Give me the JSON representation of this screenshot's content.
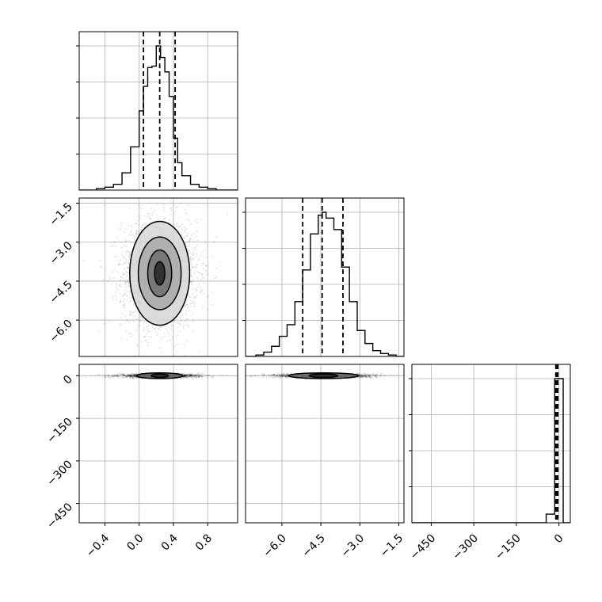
{
  "chart_data": {
    "type": "corner",
    "parameters": [
      {
        "index": 0,
        "range": [
          -0.7,
          1.15
        ],
        "ticks": [
          -0.4,
          0.0,
          0.4,
          0.8
        ],
        "tick_labels": [
          "−0.4",
          "0.0",
          "0.4",
          "0.8"
        ],
        "quantiles": [
          0.05,
          0.24,
          0.42
        ],
        "hist": {
          "edges": [
            -0.7,
            -0.6,
            -0.5,
            -0.4,
            -0.3,
            -0.2,
            -0.1,
            0.0,
            0.05,
            0.1,
            0.15,
            0.2,
            0.25,
            0.3,
            0.35,
            0.4,
            0.45,
            0.5,
            0.6,
            0.7,
            0.8,
            0.9,
            1.0,
            1.15
          ],
          "counts": [
            0,
            0,
            1,
            2,
            4,
            12,
            30,
            55,
            72,
            85,
            86,
            100,
            92,
            82,
            65,
            36,
            19,
            10,
            4,
            2,
            1,
            0,
            0
          ]
        }
      },
      {
        "index": 1,
        "range": [
          -7.4,
          -1.3
        ],
        "ticks": [
          -6.0,
          -4.5,
          -3.0,
          -1.5
        ],
        "tick_labels": [
          "−6.0",
          "−4.5",
          "−3.0",
          "−1.5"
        ],
        "quantiles": [
          -5.2,
          -4.45,
          -3.65
        ],
        "hist": {
          "edges": [
            -7.4,
            -7.0,
            -6.7,
            -6.4,
            -6.1,
            -5.8,
            -5.5,
            -5.2,
            -4.9,
            -4.6,
            -4.45,
            -4.3,
            -4.0,
            -3.7,
            -3.4,
            -3.1,
            -2.8,
            -2.5,
            -2.2,
            -1.9,
            -1.6,
            -1.3
          ],
          "counts": [
            0,
            1,
            3,
            7,
            14,
            22,
            38,
            60,
            85,
            98,
            100,
            96,
            88,
            62,
            38,
            18,
            9,
            4,
            2,
            1,
            0
          ]
        }
      },
      {
        "index": 2,
        "range": [
          -518,
          40
        ],
        "ticks": [
          -450,
          -300,
          -150,
          0
        ],
        "tick_labels": [
          "−450",
          "−300",
          "−150",
          "0"
        ],
        "quantiles": [
          -11,
          -7,
          -4
        ],
        "hist": {
          "edges": [
            -518,
            -45,
            -15,
            15,
            40
          ],
          "counts": [
            0,
            6,
            100,
            0
          ]
        }
      }
    ],
    "contours": {
      "p1_vs_p0": {
        "center": [
          0.24,
          -4.2
        ],
        "levels": [
          {
            "rx": 0.06,
            "ry": 0.45
          },
          {
            "rx": 0.14,
            "ry": 0.9
          },
          {
            "rx": 0.25,
            "ry": 1.4
          },
          {
            "rx": 0.35,
            "ry": 2.0
          }
        ]
      },
      "p2_vs_p0": {
        "center": [
          0.24,
          0
        ],
        "levels": [
          {
            "rx": 0.1,
            "ry": 6
          },
          {
            "rx": 0.27,
            "ry": 10
          }
        ]
      },
      "p2_vs_p1": {
        "center": [
          -4.4,
          0
        ],
        "levels": [
          {
            "rx": 0.55,
            "ry": 6
          },
          {
            "rx": 1.35,
            "ry": 10
          }
        ]
      }
    },
    "grid": true
  }
}
